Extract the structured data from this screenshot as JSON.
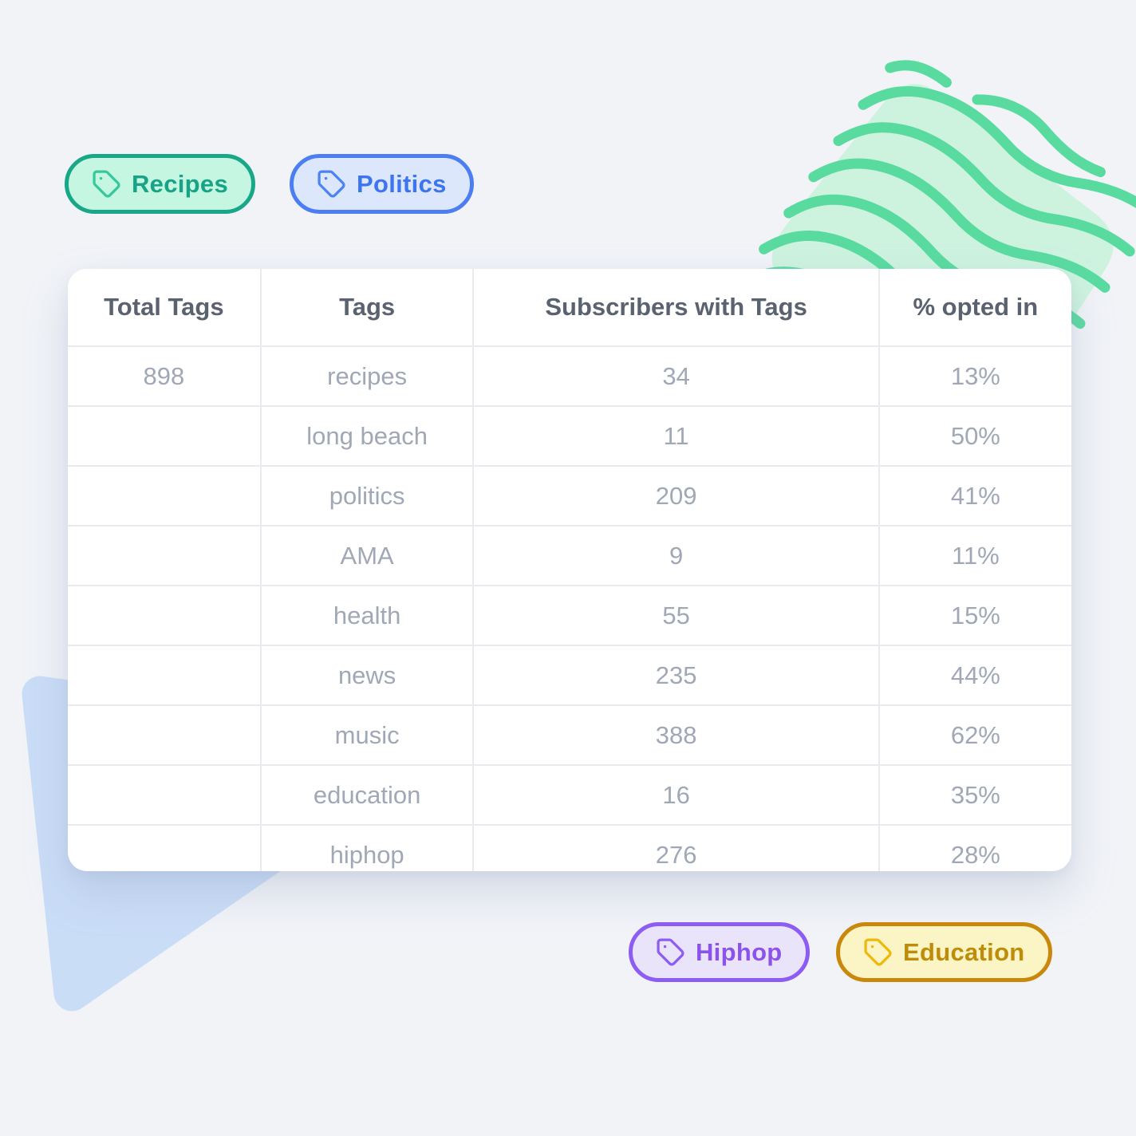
{
  "page": {
    "background_color": "#F1F3F7",
    "decor": {
      "wave_color": "#59DBA0",
      "blob_color": "#CDF3DF",
      "triangle_color": "#CADDF7"
    }
  },
  "pills": {
    "top": [
      {
        "label": "Recipes",
        "border": "#19A78A",
        "bg": "#C5F6E1",
        "text": "#17A385",
        "icon": "#36C89D"
      },
      {
        "label": "Politics",
        "border": "#4C7EF2",
        "bg": "#DCE7FC",
        "text": "#3D74F0",
        "icon": "#4C82F1"
      }
    ],
    "bottom": [
      {
        "label": "Hiphop",
        "border": "#8C5CF3",
        "bg": "#EAE4FB",
        "text": "#8C52EC",
        "icon": "#8C5CF3"
      },
      {
        "label": "Education",
        "border": "#C9870C",
        "bg": "#FBF4C5",
        "text": "#BE8C09",
        "icon": "#EEB90C"
      }
    ]
  },
  "table": {
    "columns": [
      "Total Tags",
      "Tags",
      "Subscribers with Tags",
      "% opted in"
    ],
    "header_text_color": "#5A6270",
    "cell_text_color": "#A0A8B6",
    "border_color": "#E8EAEE",
    "rows": [
      {
        "total_tags": "898",
        "tag": "recipes",
        "subscribers_with_tags": "34",
        "opted_in": "13%"
      },
      {
        "total_tags": "",
        "tag": "long beach",
        "subscribers_with_tags": "11",
        "opted_in": "50%"
      },
      {
        "total_tags": "",
        "tag": "politics",
        "subscribers_with_tags": "209",
        "opted_in": "41%"
      },
      {
        "total_tags": "",
        "tag": "AMA",
        "subscribers_with_tags": "9",
        "opted_in": "11%"
      },
      {
        "total_tags": "",
        "tag": "health",
        "subscribers_with_tags": "55",
        "opted_in": "15%"
      },
      {
        "total_tags": "",
        "tag": "news",
        "subscribers_with_tags": "235",
        "opted_in": "44%"
      },
      {
        "total_tags": "",
        "tag": "music",
        "subscribers_with_tags": "388",
        "opted_in": "62%"
      },
      {
        "total_tags": "",
        "tag": "education",
        "subscribers_with_tags": "16",
        "opted_in": "35%"
      },
      {
        "total_tags": "",
        "tag": "hiphop",
        "subscribers_with_tags": "276",
        "opted_in": "28%"
      }
    ]
  }
}
